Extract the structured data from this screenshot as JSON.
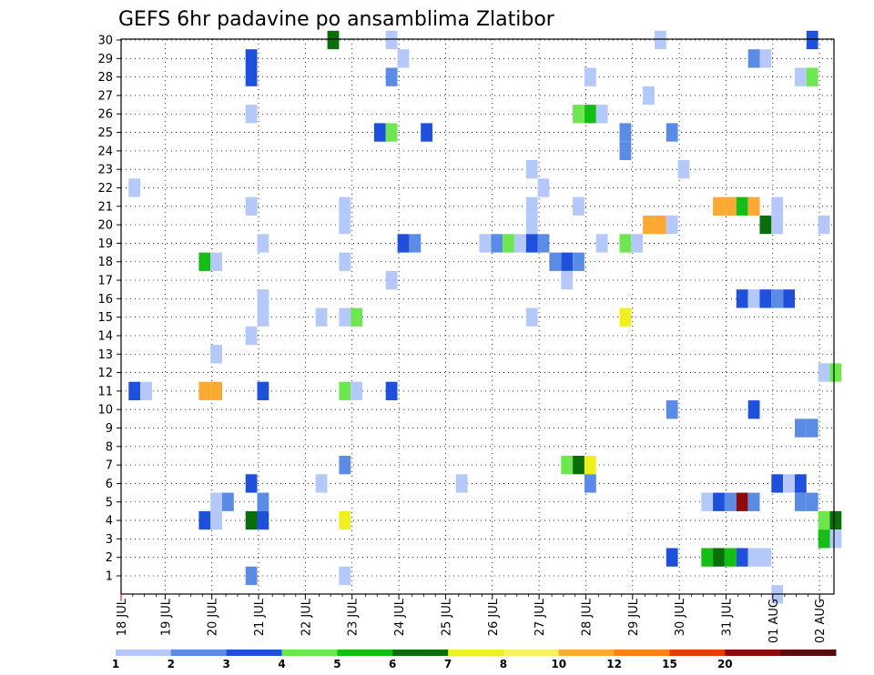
{
  "chart_data": {
    "type": "heatmap",
    "title": "GEFS 6hr padavine po ansamblima Zlatibor",
    "xlabel": "",
    "ylabel": "",
    "x_tick_labels": [
      "18 JUL",
      "19 JUL",
      "20 JUL",
      "21 JUL",
      "22 JUL",
      "23 JUL",
      "24 JUL",
      "25 JUL",
      "26 JUL",
      "27 JUL",
      "28 JUL",
      "29 JUL",
      "30 JUL",
      "31 JUL",
      "01 AUG",
      "02 AUG"
    ],
    "y_ticks": [
      1,
      2,
      3,
      4,
      5,
      6,
      7,
      8,
      9,
      10,
      11,
      12,
      13,
      14,
      15,
      16,
      17,
      18,
      19,
      20,
      21,
      22,
      23,
      24,
      25,
      26,
      27,
      28,
      29,
      30
    ],
    "x_range_steps": [
      0,
      61
    ],
    "y_range": [
      0,
      30
    ],
    "grid": true,
    "colorbar": {
      "labels": [
        "1",
        "2",
        "3",
        "4",
        "5",
        "6",
        "7",
        "8",
        "10",
        "12",
        "15",
        "20"
      ],
      "colors": [
        "#b4c8fa",
        "#5a8ce6",
        "#1e50dc",
        "#6ee650",
        "#14be14",
        "#0a6e0a",
        "#f0f01e",
        "#faf064",
        "#faaa32",
        "#fa8214",
        "#e63c0a",
        "#8c0a0a",
        "#5a0a0a"
      ]
    },
    "cells": [
      [
        30,
        18,
        5
      ],
      [
        30,
        23,
        0
      ],
      [
        30,
        46,
        0
      ],
      [
        30,
        59,
        2
      ],
      [
        29,
        11,
        2
      ],
      [
        29,
        24,
        0
      ],
      [
        29,
        54,
        1
      ],
      [
        29,
        55,
        0
      ],
      [
        28,
        11,
        2
      ],
      [
        28,
        23,
        1
      ],
      [
        28,
        40,
        0
      ],
      [
        28,
        58,
        0
      ],
      [
        28,
        59,
        3
      ],
      [
        27,
        45,
        0
      ],
      [
        26,
        11,
        0
      ],
      [
        26,
        39,
        3
      ],
      [
        26,
        40,
        4
      ],
      [
        26,
        41,
        0
      ],
      [
        25,
        22,
        2
      ],
      [
        25,
        23,
        3
      ],
      [
        25,
        26,
        2
      ],
      [
        25,
        43,
        1
      ],
      [
        25,
        47,
        1
      ],
      [
        24,
        43,
        1
      ],
      [
        23,
        35,
        0
      ],
      [
        23,
        48,
        0
      ],
      [
        22,
        1,
        0
      ],
      [
        22,
        36,
        0
      ],
      [
        21,
        11,
        0
      ],
      [
        21,
        19,
        0
      ],
      [
        21,
        35,
        0
      ],
      [
        21,
        39,
        0
      ],
      [
        21,
        51,
        8
      ],
      [
        21,
        52,
        8
      ],
      [
        21,
        53,
        4
      ],
      [
        21,
        54,
        8
      ],
      [
        21,
        56,
        0
      ],
      [
        20,
        19,
        0
      ],
      [
        20,
        35,
        0
      ],
      [
        20,
        45,
        8
      ],
      [
        20,
        46,
        8
      ],
      [
        20,
        47,
        0
      ],
      [
        20,
        55,
        5
      ],
      [
        20,
        56,
        0
      ],
      [
        20,
        60,
        0
      ],
      [
        19,
        12,
        0
      ],
      [
        19,
        24,
        2
      ],
      [
        19,
        25,
        1
      ],
      [
        19,
        31,
        0
      ],
      [
        19,
        32,
        1
      ],
      [
        19,
        33,
        3
      ],
      [
        19,
        34,
        0
      ],
      [
        19,
        35,
        2
      ],
      [
        19,
        36,
        1
      ],
      [
        19,
        41,
        0
      ],
      [
        19,
        43,
        3
      ],
      [
        19,
        44,
        0
      ],
      [
        18,
        7,
        4
      ],
      [
        18,
        8,
        0
      ],
      [
        18,
        19,
        0
      ],
      [
        18,
        37,
        1
      ],
      [
        18,
        38,
        2
      ],
      [
        18,
        39,
        1
      ],
      [
        17,
        23,
        0
      ],
      [
        17,
        38,
        0
      ],
      [
        16,
        12,
        0
      ],
      [
        16,
        53,
        2
      ],
      [
        16,
        54,
        0
      ],
      [
        16,
        55,
        2
      ],
      [
        16,
        56,
        1
      ],
      [
        16,
        57,
        2
      ],
      [
        15,
        12,
        0
      ],
      [
        15,
        17,
        0
      ],
      [
        15,
        19,
        0
      ],
      [
        15,
        20,
        3
      ],
      [
        15,
        35,
        0
      ],
      [
        15,
        43,
        6
      ],
      [
        14,
        11,
        0
      ],
      [
        13,
        8,
        0
      ],
      [
        12,
        60,
        0
      ],
      [
        12,
        61,
        3
      ],
      [
        11,
        1,
        2
      ],
      [
        11,
        2,
        0
      ],
      [
        11,
        7,
        8
      ],
      [
        11,
        8,
        8
      ],
      [
        11,
        12,
        2
      ],
      [
        11,
        19,
        3
      ],
      [
        11,
        20,
        0
      ],
      [
        11,
        23,
        2
      ],
      [
        10,
        47,
        1
      ],
      [
        10,
        54,
        2
      ],
      [
        9,
        58,
        1
      ],
      [
        9,
        59,
        1
      ],
      [
        7,
        19,
        1
      ],
      [
        7,
        38,
        3
      ],
      [
        7,
        39,
        5
      ],
      [
        7,
        40,
        6
      ],
      [
        6,
        11,
        2
      ],
      [
        6,
        17,
        0
      ],
      [
        6,
        29,
        0
      ],
      [
        6,
        40,
        1
      ],
      [
        6,
        56,
        2
      ],
      [
        6,
        57,
        0
      ],
      [
        6,
        58,
        2
      ],
      [
        5,
        8,
        0
      ],
      [
        5,
        9,
        1
      ],
      [
        5,
        12,
        1
      ],
      [
        5,
        50,
        0
      ],
      [
        5,
        51,
        2
      ],
      [
        5,
        52,
        1
      ],
      [
        5,
        53,
        11
      ],
      [
        5,
        54,
        1
      ],
      [
        5,
        58,
        1
      ],
      [
        5,
        59,
        1
      ],
      [
        4,
        7,
        2
      ],
      [
        4,
        8,
        0
      ],
      [
        4,
        11,
        5
      ],
      [
        4,
        12,
        2
      ],
      [
        4,
        19,
        6
      ],
      [
        4,
        60,
        3
      ],
      [
        4,
        61,
        5
      ],
      [
        3,
        60,
        4
      ],
      [
        3,
        61,
        0
      ],
      [
        2,
        47,
        2
      ],
      [
        2,
        50,
        4
      ],
      [
        2,
        51,
        5
      ],
      [
        2,
        52,
        4
      ],
      [
        2,
        53,
        2
      ],
      [
        2,
        54,
        0
      ],
      [
        2,
        55,
        0
      ],
      [
        1,
        11,
        1
      ],
      [
        1,
        19,
        0
      ],
      [
        0,
        56,
        0
      ]
    ]
  }
}
